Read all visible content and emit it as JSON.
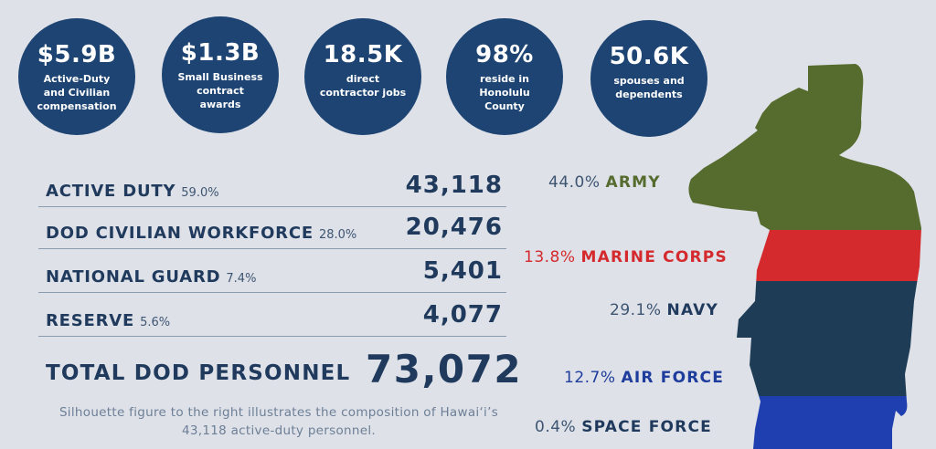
{
  "stats": [
    {
      "value": "$5.9B",
      "label": "Active-Duty and Civilian compensation"
    },
    {
      "value": "$1.3B",
      "label": "Small Business contract awards"
    },
    {
      "value": "18.5K",
      "label": "direct contractor jobs"
    },
    {
      "value": "98%",
      "label": "reside in Honolulu County"
    },
    {
      "value": "50.6K",
      "label": "spouses and dependents"
    }
  ],
  "personnel": [
    {
      "label": "ACTIVE DUTY",
      "pct": "59.0%",
      "value": "43,118"
    },
    {
      "label": "DOD CIVILIAN WORKFORCE",
      "pct": "28.0%",
      "value": "20,476"
    },
    {
      "label": "NATIONAL GUARD",
      "pct": "7.4%",
      "value": "5,401"
    },
    {
      "label": "RESERVE",
      "pct": "5.6%",
      "value": "4,077"
    }
  ],
  "total": {
    "label": "TOTAL DOD PERSONNEL",
    "value": "73,072"
  },
  "note": "Silhouette figure to the right illustrates the composition of Hawai‘i’s 43,118 active-duty personnel.",
  "branches": [
    {
      "pct": "44.0%",
      "name": "ARMY",
      "color": "#566b2e"
    },
    {
      "pct": "13.8%",
      "name": "MARINE CORPS",
      "color": "#d42a2e"
    },
    {
      "pct": "29.1%",
      "name": "NAVY",
      "color": "#1f3a5c"
    },
    {
      "pct": "12.7%",
      "name": "AIR FORCE",
      "color": "#1d3c9c"
    },
    {
      "pct": "0.4%",
      "name": "SPACE FORCE",
      "color": "#1f3a5c"
    }
  ],
  "colors": {
    "background": "#dee1e8",
    "circle": "#1d4473",
    "army": "#566b2e",
    "marines": "#d42a2e",
    "navy": "#1e3c55",
    "air_force": "#1f3fb0"
  }
}
